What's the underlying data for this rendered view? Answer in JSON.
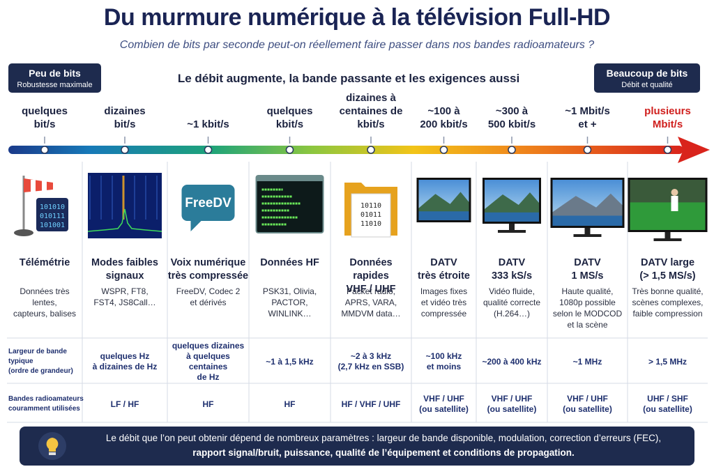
{
  "header": {
    "title": "Du murmure numérique à la télévision Full-HD",
    "subtitle": "Combien de bits par seconde peut-on réellement faire passer dans nos bandes radioamateurs ?"
  },
  "left_badge": {
    "title": "Peu de bits",
    "subtitle": "Robustesse maximale"
  },
  "right_badge": {
    "title": "Beaucoup de bits",
    "subtitle": "Débit et qualité"
  },
  "banner": "Le débit augmente, la bande passante et les exigences aussi",
  "columns": [
    {
      "rate": [
        "quelques",
        "bit/s"
      ],
      "name": [
        "Télémétrie"
      ],
      "description": [
        "Données très lentes,",
        "capteurs, balises"
      ],
      "icon_text": [
        "101010",
        "010111",
        "101001"
      ]
    },
    {
      "rate": [
        "dizaines",
        "bit/s"
      ],
      "name": [
        "Modes faibles",
        "signaux"
      ],
      "description": [
        "WSPR, FT8,",
        "FST4, JS8Call…"
      ],
      "bandwidth": [
        "quelques Hz",
        "à dizaines de Hz"
      ],
      "bands": [
        "LF / HF"
      ]
    },
    {
      "rate": [
        "~1 kbit/s"
      ],
      "name": [
        "Voix numérique",
        "très compressée"
      ],
      "description": [
        "FreeDV, Codec 2",
        "et dérivés"
      ],
      "icon_text": [
        "FreeDV"
      ],
      "bandwidth": [
        "quelques dizaines",
        "à quelques centaines",
        "de Hz"
      ],
      "bands": [
        "HF"
      ]
    },
    {
      "rate": [
        "quelques",
        "kbit/s"
      ],
      "name": [
        "Données HF"
      ],
      "description": [
        "PSK31, Olivia,",
        "PACTOR, WINLINK…"
      ],
      "bandwidth": [
        "~1 à 1,5 kHz"
      ],
      "bands": [
        "HF"
      ]
    },
    {
      "rate": [
        "dizaines à",
        "centaines de",
        "kbit/s"
      ],
      "name": [
        "Données rapides",
        "VHF / UHF"
      ],
      "description": [
        "Packet radio,",
        "APRS, VARA,",
        "MMDVM data…"
      ],
      "icon_text": [
        "10110",
        "01011",
        "11010"
      ],
      "bandwidth": [
        "~2 à 3 kHz",
        "(2,7 kHz en SSB)"
      ],
      "bands": [
        "HF / VHF / UHF"
      ]
    },
    {
      "rate": [
        "~100 à",
        "200 kbit/s"
      ],
      "name": [
        "DATV",
        "très étroite"
      ],
      "description": [
        "Images fixes",
        "et vidéo très",
        "compressée"
      ],
      "bandwidth": [
        "~100 kHz",
        "et moins"
      ],
      "bands": [
        "VHF / UHF",
        "(ou satellite)"
      ]
    },
    {
      "rate": [
        "~300 à",
        "500 kbit/s"
      ],
      "name": [
        "DATV",
        "333 kS/s"
      ],
      "description": [
        "Vidéo fluide,",
        "qualité correcte",
        "(H.264…)"
      ],
      "bandwidth": [
        "~200 à 400 kHz"
      ],
      "bands": [
        "VHF / UHF",
        "(ou satellite)"
      ]
    },
    {
      "rate": [
        "~1 Mbit/s",
        "et +"
      ],
      "name": [
        "DATV",
        "1 MS/s"
      ],
      "description": [
        "Haute qualité,",
        "1080p possible",
        "selon le MODCOD",
        "et la scène"
      ],
      "bandwidth": [
        "~1 MHz"
      ],
      "bands": [
        "VHF / UHF",
        "(ou satellite)"
      ]
    },
    {
      "rate": [
        "plusieurs",
        "Mbit/s"
      ],
      "name": [
        "DATV large",
        "(> 1,5 MS/s)"
      ],
      "description": [
        "Très bonne qualité,",
        "scènes complexes,",
        "faible compression"
      ],
      "bandwidth": [
        "> 1,5 MHz"
      ],
      "bands": [
        "UHF / SHF",
        "(ou satellite)"
      ]
    }
  ],
  "row_labels": {
    "bandwidth": [
      "Largeur de bande typique",
      "(ordre de grandeur)"
    ],
    "bands": [
      "Bandes radioamateurs",
      "couramment utilisées"
    ]
  },
  "footer": [
    "Le débit que l’on peut obtenir dépend de nombreux paramètres : largeur de bande disponible, modulation, correction d’erreurs (FEC),",
    "rapport signal/bruit, puissance, qualité de l’équipement et conditions de propagation."
  ]
}
